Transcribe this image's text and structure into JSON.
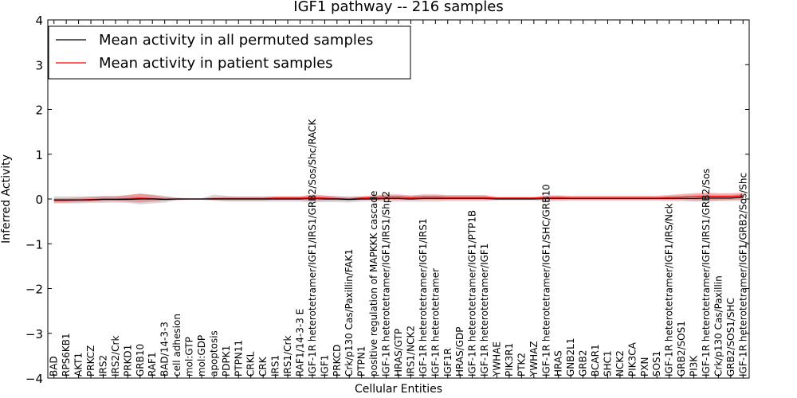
{
  "chart_data": {
    "type": "line",
    "title": "IGF1 pathway -- 216 samples",
    "xlabel": "Cellular Entities",
    "ylabel": "Inferred Activity",
    "ylim": [
      -4,
      4
    ],
    "yticks": [
      -4,
      -3,
      -2,
      -1,
      0,
      1,
      2,
      3,
      4
    ],
    "ytick_labels": [
      "−4",
      "−3",
      "−2",
      "−1",
      "0",
      "1",
      "2",
      "3",
      "4"
    ],
    "legend_position": "top-left",
    "categories": [
      "BAD",
      "RPS6KB1",
      "AKT1",
      "PRKCZ",
      "IRS2",
      "IRS2/Crk",
      "PRKD1",
      "GRB10",
      "RAF1",
      "BAD/14-3-3",
      "cell adhesion",
      "mol:GTP",
      "mol:GDP",
      "apoptosis",
      "PDPK1",
      "PTPN11",
      "CRKL",
      "CRK",
      "IRS1",
      "IRS1/Crk",
      "RAF1/14-3-3 E",
      "IGF-1R heterotetramer/IGF1/IRS1/GRB2/Sos/Shc/RACK",
      "IGF1",
      "PRKCD",
      "Crk/p130 Cas/Paxillin/FAK1",
      "PTPN1",
      "positive regulation of MAPKKK cascade",
      "IGF-1R heterotetramer/IGF1/IRS1/Shp2",
      "HRAS/GTP",
      "IRS1/NCK2",
      "IGF-1R heterotetramer/IGF1/IRS1",
      "IGF-1R heterotetramer",
      "IGF1R",
      "HRAS/GDP",
      "IGF-1R heterotetramer/IGF1/PTP1B",
      "IGF-1R heterotetramer/IGF1",
      "YWHAE",
      "PIK3R1",
      "PTK2",
      "YWHAZ",
      "IGF-1R heterotetramer/IGF1/SHC/GRB10",
      "HRAS",
      "GNB2L1",
      "GRB2",
      "BCAR1",
      "SHC1",
      "NCK2",
      "PIK3CA",
      "PXN",
      "SOS1",
      "IGF-1R heterotetramer/IGF1/IRS/Nck",
      "GRB2/SOS1",
      "PI3K",
      "IGF-1R heterotetramer/IGF1/IRS1/GRB2/Sos",
      "Crk/p130 Cas/Paxillin",
      "GRB2/SOS1/SHC",
      "IGF-1R heterotetramer/IGF1/GRB2/Sos/Shc"
    ],
    "series": [
      {
        "name": "Mean activity in all permuted samples",
        "color": "#000000",
        "values": [
          -0.02,
          -0.02,
          -0.02,
          -0.02,
          -0.01,
          -0.01,
          -0.01,
          0.0,
          0.0,
          -0.01,
          0.0,
          0.0,
          0.0,
          0.0,
          0.0,
          0.0,
          0.0,
          0.0,
          0.0,
          0.0,
          0.0,
          0.01,
          0.0,
          0.0,
          -0.01,
          0.0,
          0.0,
          0.01,
          0.01,
          0.0,
          0.01,
          0.01,
          0.01,
          0.01,
          0.01,
          0.01,
          0.0,
          0.0,
          0.0,
          0.0,
          0.01,
          0.01,
          0.01,
          0.01,
          0.01,
          0.01,
          0.01,
          0.01,
          0.01,
          0.01,
          0.01,
          0.01,
          0.01,
          0.02,
          0.02,
          0.02,
          0.04
        ],
        "band_lower": [
          -0.1,
          -0.1,
          -0.1,
          -0.09,
          -0.09,
          -0.08,
          -0.09,
          -0.12,
          -0.1,
          -0.08,
          -0.03,
          -0.02,
          -0.02,
          -0.04,
          -0.06,
          -0.06,
          -0.06,
          -0.06,
          -0.06,
          -0.06,
          -0.06,
          -0.08,
          -0.07,
          -0.07,
          -0.08,
          -0.06,
          -0.05,
          -0.06,
          -0.06,
          -0.06,
          -0.06,
          -0.06,
          -0.05,
          -0.05,
          -0.05,
          -0.05,
          -0.03,
          -0.03,
          -0.03,
          -0.03,
          -0.05,
          -0.05,
          -0.04,
          -0.04,
          -0.04,
          -0.04,
          -0.04,
          -0.04,
          -0.04,
          -0.04,
          -0.05,
          -0.05,
          -0.06,
          -0.06,
          -0.05,
          -0.05,
          -0.04
        ],
        "band_upper": [
          0.06,
          0.06,
          0.06,
          0.06,
          0.07,
          0.07,
          0.08,
          0.12,
          0.1,
          0.07,
          0.03,
          0.02,
          0.02,
          0.1,
          0.07,
          0.06,
          0.06,
          0.06,
          0.06,
          0.06,
          0.06,
          0.08,
          0.07,
          0.06,
          0.06,
          0.06,
          0.06,
          0.08,
          0.08,
          0.06,
          0.08,
          0.08,
          0.07,
          0.07,
          0.07,
          0.07,
          0.03,
          0.03,
          0.03,
          0.03,
          0.07,
          0.07,
          0.06,
          0.06,
          0.06,
          0.06,
          0.06,
          0.06,
          0.06,
          0.06,
          0.07,
          0.07,
          0.09,
          0.1,
          0.09,
          0.09,
          0.11
        ]
      },
      {
        "name": "Mean activity in patient samples",
        "color": "#ff0000",
        "values": [
          -0.03,
          -0.03,
          -0.02,
          -0.01,
          0.0,
          0.0,
          0.01,
          0.02,
          0.01,
          0.0,
          0.0,
          0.0,
          0.0,
          0.01,
          0.01,
          0.01,
          0.01,
          0.01,
          0.02,
          0.02,
          0.02,
          0.03,
          0.02,
          0.01,
          0.0,
          0.02,
          0.03,
          0.04,
          0.04,
          0.03,
          0.04,
          0.04,
          0.03,
          0.03,
          0.03,
          0.03,
          0.02,
          0.02,
          0.02,
          0.02,
          0.03,
          0.03,
          0.02,
          0.02,
          0.02,
          0.02,
          0.02,
          0.02,
          0.02,
          0.02,
          0.03,
          0.04,
          0.05,
          0.06,
          0.06,
          0.06,
          0.07
        ],
        "band_lower": [
          -0.08,
          -0.08,
          -0.07,
          -0.06,
          -0.05,
          -0.05,
          -0.06,
          -0.08,
          -0.06,
          -0.04,
          -0.02,
          -0.01,
          -0.01,
          -0.02,
          -0.03,
          -0.03,
          -0.03,
          -0.03,
          -0.02,
          -0.02,
          -0.02,
          -0.04,
          -0.03,
          -0.03,
          -0.04,
          -0.02,
          -0.02,
          -0.02,
          -0.02,
          -0.02,
          -0.02,
          -0.02,
          -0.02,
          -0.02,
          -0.02,
          -0.02,
          -0.01,
          -0.01,
          -0.01,
          -0.01,
          -0.02,
          -0.02,
          -0.02,
          -0.02,
          -0.02,
          -0.02,
          -0.02,
          -0.02,
          -0.02,
          -0.02,
          -0.02,
          -0.02,
          -0.03,
          -0.03,
          -0.03,
          -0.02,
          -0.02
        ],
        "band_upper": [
          0.02,
          0.02,
          0.03,
          0.05,
          0.06,
          0.06,
          0.09,
          0.12,
          0.09,
          0.05,
          0.02,
          0.01,
          0.01,
          0.04,
          0.05,
          0.05,
          0.05,
          0.05,
          0.06,
          0.06,
          0.06,
          0.1,
          0.08,
          0.06,
          0.04,
          0.06,
          0.08,
          0.1,
          0.1,
          0.08,
          0.1,
          0.1,
          0.09,
          0.09,
          0.09,
          0.09,
          0.05,
          0.05,
          0.05,
          0.05,
          0.08,
          0.08,
          0.07,
          0.07,
          0.07,
          0.07,
          0.07,
          0.07,
          0.07,
          0.07,
          0.09,
          0.11,
          0.13,
          0.14,
          0.13,
          0.13,
          0.14
        ]
      }
    ]
  }
}
